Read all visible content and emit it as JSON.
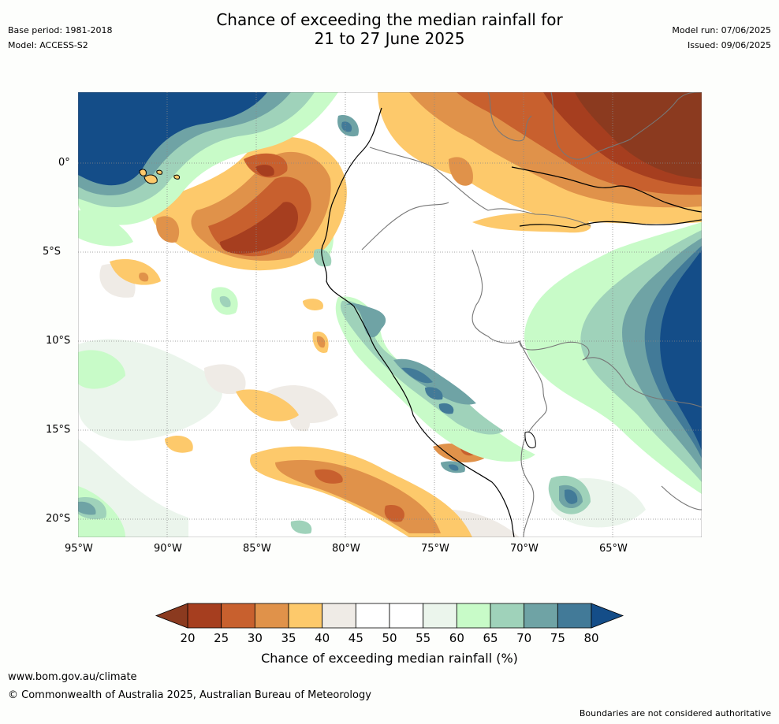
{
  "title_line1": "Chance of exceeding the median rainfall for",
  "title_line2": "21 to 27 June 2025",
  "header_left": {
    "base_period": "Base period: 1981-2018",
    "model": "Model: ACCESS-S2"
  },
  "header_right": {
    "model_run": "Model run: 07/06/2025",
    "issued": "Issued: 09/06/2025"
  },
  "map": {
    "region": "Western South America and adjacent Pacific Ocean",
    "lon_labels": [
      "95°W",
      "90°W",
      "85°W",
      "80°W",
      "75°W",
      "70°W",
      "65°W"
    ],
    "lat_labels": [
      "0°",
      "5°S",
      "10°S",
      "15°S",
      "20°S"
    ],
    "gridlines": true
  },
  "colorbar": {
    "ticks": [
      "20",
      "25",
      "30",
      "35",
      "40",
      "45",
      "50",
      "55",
      "60",
      "65",
      "70",
      "75",
      "80"
    ],
    "colors": [
      "#a63e1f",
      "#c8602e",
      "#e0924a",
      "#fdc96b",
      "#efebe6",
      "#ffffff",
      "#ffffff",
      "#ebf5ec",
      "#c8fbc8",
      "#9fd2ba",
      "#6fa3a5",
      "#427a98"
    ],
    "under_color": "#8b3a1f",
    "over_color": "#144d88",
    "label": "Chance of exceeding median rainfall (%)"
  },
  "footer": {
    "website": "www.bom.gov.au/climate",
    "copyright": "© Commonwealth of Australia 2025, Australian Bureau of Meteorology",
    "disclaimer": "Boundaries are not considered authoritative"
  }
}
